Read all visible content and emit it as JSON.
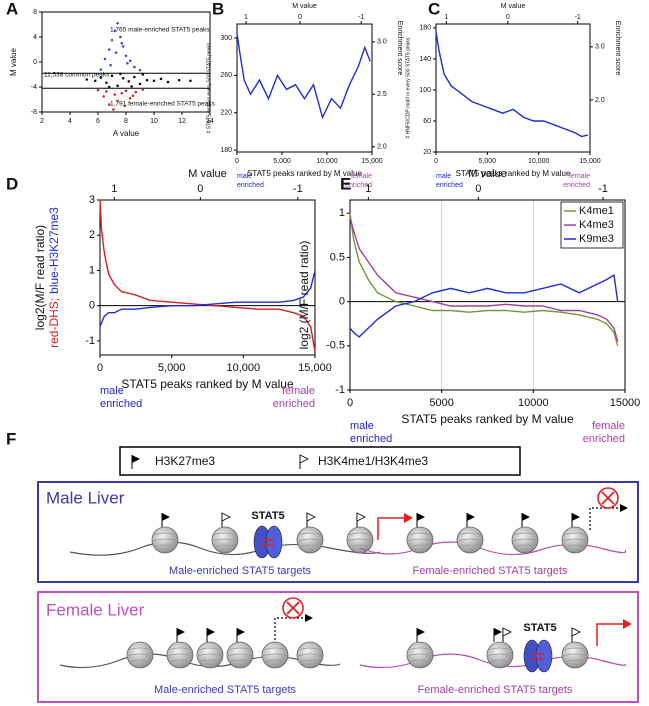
{
  "chart_data": [
    {
      "panel": "A",
      "type": "scatter",
      "xlabel": "A value",
      "ylabel": "M value",
      "xlim": [
        2,
        14
      ],
      "xticks": [
        2,
        4,
        6,
        8,
        10,
        12,
        14
      ],
      "ylim": [
        -8,
        8
      ],
      "yticks": [
        -8,
        -4,
        0,
        4,
        8
      ],
      "hlines": [
        -1.8,
        -4.2
      ],
      "annotations": [
        "1,765 male-enriched STAT5 peaks",
        "11,538 common peaks",
        "1,791 female-enriched STAT5 peaks"
      ],
      "series": [
        {
          "color": "#3b4fc4",
          "x": [
            6.2,
            6.5,
            6.8,
            7.0,
            7.2,
            7.4,
            7.6,
            7.8,
            8.0,
            8.3,
            8.6,
            6.9,
            7.3,
            7.7,
            8.1,
            9.0
          ],
          "y": [
            -1.2,
            0.5,
            2.0,
            3.5,
            5.0,
            6.2,
            4.0,
            2.5,
            1.0,
            0.2,
            -0.8,
            -0.5,
            1.5,
            3.0,
            -0.2,
            -1.3
          ]
        },
        {
          "color": "#111111",
          "x": [
            5.2,
            5.8,
            6.2,
            6.6,
            7.0,
            7.4,
            7.8,
            8.2,
            8.6,
            9.0,
            9.5,
            10.0,
            10.5,
            11.0,
            11.8,
            12.6,
            6.8,
            7.6,
            8.4,
            9.2
          ],
          "y": [
            -2.8,
            -3.0,
            -2.5,
            -3.3,
            -2.2,
            -3.8,
            -2.6,
            -3.1,
            -2.4,
            -3.5,
            -2.9,
            -3.0,
            -2.7,
            -3.2,
            -2.9,
            -3.0,
            -4.0,
            -1.9,
            -3.9,
            -2.0
          ]
        },
        {
          "color": "#d02a2a",
          "x": [
            6.0,
            6.4,
            6.8,
            7.1,
            7.4,
            7.7,
            8.0,
            8.3,
            8.7,
            9.2,
            6.6,
            7.2,
            7.9,
            8.5
          ],
          "y": [
            -4.5,
            -5.5,
            -6.8,
            -7.6,
            -6.2,
            -5.0,
            -4.6,
            -5.8,
            -4.8,
            -4.4,
            -4.7,
            -5.2,
            -7.0,
            -5.4
          ]
        }
      ]
    },
    {
      "panel": "B",
      "type": "line",
      "x2label": "M value",
      "x2ticks": [
        1,
        0,
        -1
      ],
      "x2_at": [
        1000,
        7000,
        13800
      ],
      "xlabel": "STAT5 peaks ranked by M value",
      "ylabel": "# STAT5 motif in every 500 STAT5 peaks",
      "y2label": "Enrichment score",
      "xlim": [
        0,
        15000
      ],
      "xticks": [
        0,
        {
          "value": 5000,
          "label": "5,000"
        },
        {
          "value": 10000,
          "label": "10,000"
        },
        {
          "value": 15000,
          "label": "15,000"
        }
      ],
      "ylim": [
        178,
        315
      ],
      "yticks": [
        180,
        220,
        260,
        300
      ],
      "y2lim": [
        1.95,
        3.17
      ],
      "y2ticks": [
        {
          "value": 2,
          "label": "2.0"
        },
        {
          "value": 2.5,
          "label": "2.5"
        },
        {
          "value": 3,
          "label": "3.0"
        }
      ],
      "left_note": [
        "male",
        "enriched"
      ],
      "right_note": [
        "female",
        "enriched"
      ],
      "left_note_color": "#2323c8",
      "right_note_color": "#b03cb0",
      "color": "#1f2fd0",
      "x": [
        0,
        300,
        800,
        1500,
        2500,
        3500,
        4500,
        5500,
        6500,
        7500,
        8500,
        9500,
        10500,
        11500,
        12500,
        13500,
        14200,
        14800
      ],
      "values": [
        305,
        285,
        255,
        240,
        255,
        235,
        260,
        245,
        250,
        235,
        250,
        215,
        235,
        225,
        250,
        270,
        290,
        275
      ]
    },
    {
      "panel": "C",
      "type": "line",
      "x2label": "M value",
      "x2ticks": [
        1,
        0,
        -1
      ],
      "x2_at": [
        1000,
        7000,
        13800
      ],
      "xlabel": "STAT5 peaks ranked by M value",
      "ylabel": "# HNF6/CDP motif in every 500 STAT5 peaks",
      "y2label": "Enrichment score",
      "xlim": [
        0,
        15000
      ],
      "xticks": [
        0,
        {
          "value": 5000,
          "label": "5,000"
        },
        {
          "value": 10000,
          "label": "10,000"
        },
        {
          "value": 15000,
          "label": "15,000"
        }
      ],
      "ylim": [
        20,
        185
      ],
      "yticks": [
        20,
        60,
        100,
        140,
        180
      ],
      "y2lim": [
        1.02,
        3.43
      ],
      "y2ticks": [
        {
          "value": 2,
          "label": "2.0"
        },
        {
          "value": 3,
          "label": "3.0"
        }
      ],
      "left_note": [
        "male",
        "enriched"
      ],
      "right_note": [
        "female",
        "enriched"
      ],
      "left_note_color": "#2323c8",
      "right_note_color": "#b03cb0",
      "color": "#1f2fd0",
      "x": [
        0,
        300,
        800,
        1500,
        2500,
        3500,
        4500,
        5500,
        6500,
        7500,
        8500,
        9500,
        10500,
        11500,
        12500,
        13500,
        14200,
        14800
      ],
      "values": [
        175,
        150,
        120,
        105,
        95,
        85,
        80,
        75,
        70,
        75,
        65,
        60,
        60,
        55,
        50,
        45,
        40,
        42
      ]
    },
    {
      "panel": "D",
      "type": "line",
      "x2label": "M value",
      "x2ticks": [
        1,
        0,
        -1
      ],
      "x2_at": [
        1000,
        7000,
        13800
      ],
      "xlabel": "STAT5 peaks ranked by M value",
      "ylabel": "log2(M/F read ratio)",
      "ylabel_parts": [
        "red-DHS;",
        "blue-H3K27me3"
      ],
      "xlim": [
        0,
        15000
      ],
      "xticks": [
        0,
        {
          "value": 5000,
          "label": "5,000"
        },
        {
          "value": 10000,
          "label": "10,000"
        },
        {
          "value": 15000,
          "label": "15,000"
        }
      ],
      "ylim": [
        -1.4,
        3
      ],
      "yticks": [
        -1,
        0,
        1,
        2,
        3
      ],
      "hlines": [
        0
      ],
      "left_note": [
        "male",
        "enriched"
      ],
      "right_note": [
        "female",
        "enriched"
      ],
      "left_note_color": "#2323c8",
      "right_note_color": "#b03cb0",
      "x": [
        0,
        100,
        300,
        600,
        1000,
        1500,
        2500,
        3500,
        5000,
        6500,
        8000,
        9500,
        11000,
        12500,
        13500,
        14200,
        14700,
        15000
      ],
      "series": [
        {
          "color": "#d42020",
          "values": [
            3,
            2.2,
            1.5,
            0.9,
            0.6,
            0.4,
            0.3,
            0.15,
            0.1,
            0.05,
            0,
            -0.05,
            -0.1,
            -0.1,
            -0.2,
            -0.3,
            -0.6,
            -1.3
          ]
        },
        {
          "color": "#1f2fd0",
          "values": [
            -0.6,
            -0.5,
            -0.3,
            -0.2,
            -0.2,
            -0.1,
            -0.1,
            -0.05,
            0,
            0,
            0.05,
            0.1,
            0.1,
            0.1,
            0.15,
            0.25,
            0.5,
            1.0
          ]
        }
      ]
    },
    {
      "panel": "E",
      "type": "line",
      "x2label": "M value",
      "x2ticks": [
        1,
        0,
        -1
      ],
      "x2_at": [
        1000,
        7000,
        13800
      ],
      "xlabel": "STAT5 peaks ranked by M value",
      "ylabel": "log2 (M/F read ratio)",
      "xlim": [
        0,
        15000
      ],
      "xticks": [
        0,
        5000,
        10000,
        15000
      ],
      "grid": true,
      "ylim": [
        -1,
        1.15
      ],
      "yticks": [
        -1,
        -0.5,
        0,
        0.5,
        1
      ],
      "hlines": [
        0
      ],
      "legend": "top-right",
      "left_note": [
        "male",
        "enriched"
      ],
      "right_note": [
        "female",
        "enriched"
      ],
      "left_note_color": "#2323c8",
      "right_note_color": "#b03cb0",
      "x": [
        0,
        200,
        500,
        1000,
        1500,
        2500,
        3500,
        4500,
        5500,
        6500,
        7500,
        8500,
        9500,
        10500,
        11500,
        12500,
        13500,
        14000,
        14400,
        14600
      ],
      "series": [
        {
          "name": "K4me1",
          "color": "#6f9a3c",
          "values": [
            1.0,
            0.7,
            0.45,
            0.25,
            0.1,
            0,
            -0.05,
            -0.1,
            -0.1,
            -0.12,
            -0.1,
            -0.1,
            -0.12,
            -0.1,
            -0.12,
            -0.15,
            -0.2,
            -0.25,
            -0.35,
            -0.5
          ]
        },
        {
          "name": "K4me3",
          "color": "#a0409a",
          "values": [
            0.95,
            0.8,
            0.6,
            0.45,
            0.3,
            0.1,
            0.05,
            0,
            -0.05,
            -0.05,
            -0.05,
            -0.03,
            -0.05,
            -0.05,
            -0.1,
            -0.1,
            -0.15,
            -0.2,
            -0.3,
            -0.45
          ]
        },
        {
          "name": "K9me3",
          "color": "#1f2fd0",
          "values": [
            -0.3,
            -0.35,
            -0.4,
            -0.3,
            -0.2,
            -0.05,
            0,
            0.1,
            0.15,
            0.1,
            0.15,
            0.1,
            0.1,
            0.15,
            0.2,
            0.1,
            0.2,
            0.25,
            0.3,
            0
          ]
        }
      ]
    }
  ],
  "diagram": {
    "panel": "F",
    "legend": [
      "H3K27me3",
      "H3K4me1/H3K4me3"
    ],
    "boxes": [
      {
        "title": "Male Liver",
        "stat5": "STAT5",
        "left_label": "Male-enriched STAT5 targets",
        "right_label": "Female-enriched STAT5 targets"
      },
      {
        "title": "Female Liver",
        "stat5": "STAT5",
        "left_label": "Male-enriched STAT5 targets",
        "right_label": "Female-enriched STAT5 targets"
      }
    ]
  }
}
